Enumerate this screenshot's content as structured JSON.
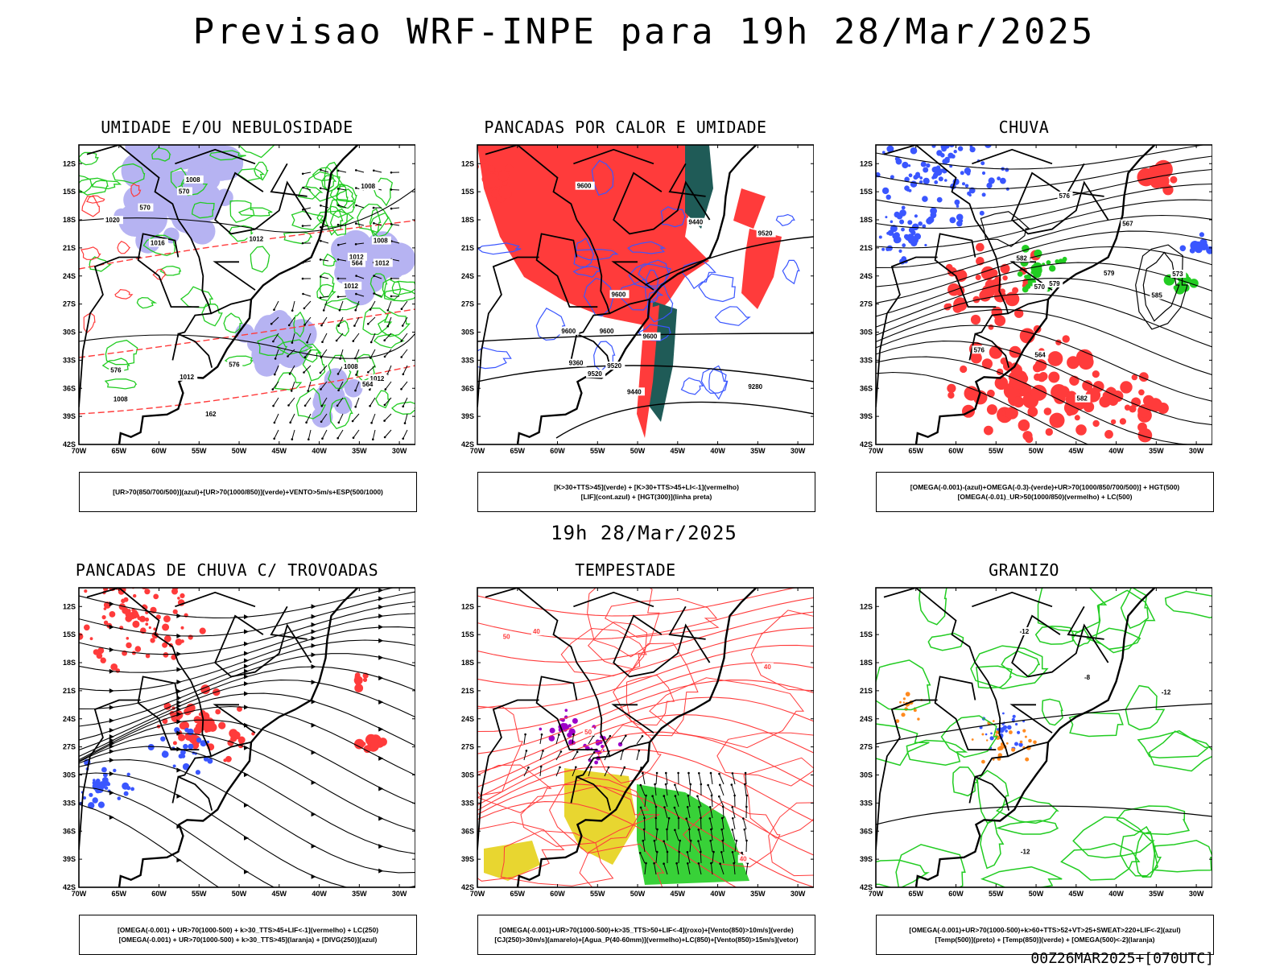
{
  "main_title": "Previsao WRF-INPE  para 19h 28/Mar/2025",
  "mid_date": "19h 28/Mar/2025",
  "footer_stamp": "00Z26MAR2025+[070UTC]",
  "axes": {
    "lat_ticks": [
      "12S",
      "15S",
      "18S",
      "21S",
      "24S",
      "27S",
      "30S",
      "33S",
      "36S",
      "39S",
      "42S"
    ],
    "lon_ticks": [
      "70W",
      "65W",
      "60W",
      "55W",
      "50W",
      "45W",
      "40W",
      "35W",
      "30W"
    ]
  },
  "colors": {
    "blue": "#3a56ff",
    "green": "#22cc22",
    "red": "#ff3b3b",
    "lavender": "#b6b3f2",
    "darkteal": "#1f5b57",
    "yellow": "#e8d630",
    "purple": "#9c00c8",
    "orange": "#ff8a1e",
    "black": "#000000"
  },
  "panels": [
    {
      "id": "umidade",
      "title": "UMIDADE E/OU NEBULOSIDADE",
      "legend_lines": [
        "[UR>70(850/700/500)](azul)+[UR>70(1000/850)](verde)+VENTO>5m/s+ESP(500/1000)"
      ],
      "contour_labels": [
        "1008",
        "1008",
        "1012",
        "1012",
        "1008",
        "1008",
        "1012",
        "1012",
        "1008",
        "1016",
        "1012",
        "1020",
        "1012",
        "162",
        "576",
        "570",
        "564",
        "570",
        "576",
        "564"
      ]
    },
    {
      "id": "pancadas_calor",
      "title": "PANCADAS POR CALOR E UMIDADE",
      "legend_lines": [
        "[K>30+TTS>45](verde)  +  [K>30+TTS>45+LI<-1](vermelho)",
        "[LIF](cont.azul)  +  [HGT(300)](linha preta)"
      ],
      "contour_labels": [
        "9600",
        "9600",
        "9600",
        "9600",
        "9600",
        "9520",
        "9520",
        "9520",
        "9440",
        "9440",
        "9360",
        "9280"
      ]
    },
    {
      "id": "chuva",
      "title": "CHUVA",
      "legend_lines": [
        "[OMEGA(-0.001)-(azul)+OMEGA(-0.3)-(verde)+UR>70(1000/850/700/500)]  +  HGT(500)",
        "[OMEGA(-0.01)_UR>50(1000/850)(vermelho)  +  LC(500)"
      ],
      "contour_labels": [
        "585",
        "582",
        "579",
        "576",
        "573",
        "570",
        "567",
        "564",
        "582",
        "579",
        "576"
      ]
    },
    {
      "id": "trovoadas",
      "title": "PANCADAS DE CHUVA C/ TROVOADAS",
      "legend_lines": [
        "[OMEGA(-0.001)  +  UR>70(1000-500)  +  k>30_TTS>45+LIF<-1](vermelho)  +  LC(250)",
        "[OMEGA(-0.001)  +  UR>70(1000-500)  +  k>30_TTS>45](laranja)  +  [DIVG(250)](azul)"
      ],
      "contour_labels": []
    },
    {
      "id": "tempestade",
      "title": "TEMPESTADE",
      "legend_lines": [
        "[OMEGA(-0.001)+UR>70(1000-500)+k>35_TTS>50+LIF<-4](roxo)+[Vento(850)>10m/s](verde)",
        "[CJ(250)>30m/s](amarelo)+[Agua_P(40-60mm)](vermelho)+LC(850)+[Vento(850)>15m/s](vetor)"
      ],
      "contour_labels": [
        "40",
        "50",
        "40",
        "50",
        "40"
      ]
    },
    {
      "id": "granizo",
      "title": "GRANIZO",
      "legend_lines": [
        "[OMEGA(-0.001)+UR>70(1000-500)+k>60+TTS>52+VT>25+SWEAT>220+LIF<-2](azul)",
        "[Temp(500)](preto)  +  [Temp(850)](verde)  +  [OMEGA(500)<-2](laranja)"
      ],
      "contour_labels": [
        "-12",
        "-8",
        "-12",
        "-12"
      ]
    }
  ]
}
